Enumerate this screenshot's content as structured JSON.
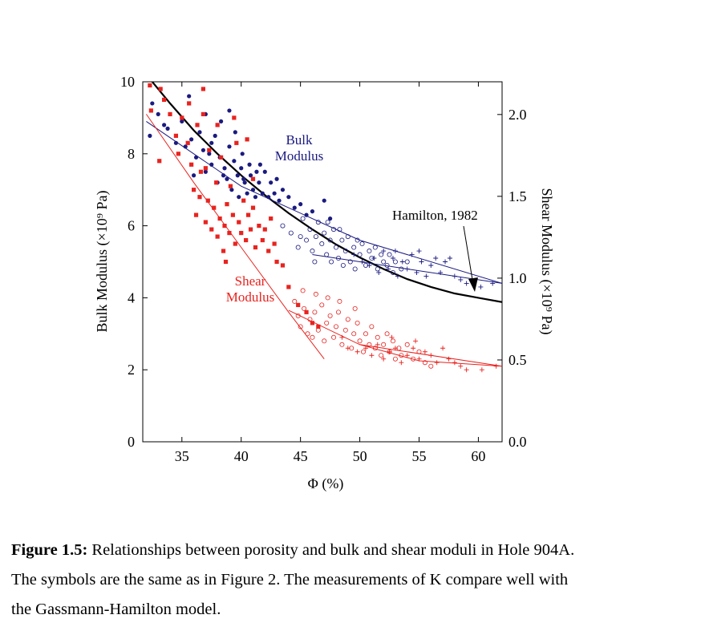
{
  "chart_data": {
    "type": "scatter",
    "xlabel": "Φ (%)",
    "ylabel_left": "Bulk Modulus (×10⁹ Pa)",
    "ylabel_right": "Shear Modulus (×10⁹ Pa)",
    "xlim": [
      31.7,
      62
    ],
    "ylim_left": [
      0,
      10
    ],
    "ylim_right": [
      0,
      2.2
    ],
    "x_ticks": [
      35,
      40,
      45,
      50,
      55,
      60
    ],
    "y_ticks_left": [
      0,
      2,
      4,
      6,
      8,
      10
    ],
    "y_ticks_right": [
      "0.0",
      "0.5",
      "1.0",
      "1.5",
      "2.0"
    ],
    "grid": false,
    "annotations": {
      "bulk_label": [
        "Bulk",
        "Modulus"
      ],
      "shear_label": [
        "Shear",
        "Modulus"
      ],
      "hamilton_label": "Hamilton, 1982"
    },
    "colors": {
      "bulk": "#1a1a80",
      "shear": "#e8231f",
      "hamilton": "#000000"
    },
    "curves": {
      "hamilton_1982": {
        "x": [
          32,
          34,
          36,
          38,
          40,
          42,
          44,
          46,
          48,
          50,
          52,
          54,
          56,
          58,
          60,
          62
        ],
        "y": [
          10.2,
          9.4,
          8.65,
          8.0,
          7.4,
          6.85,
          6.35,
          5.9,
          5.48,
          5.12,
          4.8,
          4.52,
          4.3,
          4.12,
          4.0,
          3.88
        ]
      },
      "bulk_fit": {
        "x": [
          32,
          40,
          50,
          62
        ],
        "y": [
          8.9,
          7.1,
          5.6,
          4.4
        ]
      },
      "bulk_fit_high": {
        "x": [
          46,
          62
        ],
        "y": [
          5.2,
          4.4
        ]
      },
      "shear_fit": {
        "x": [
          32,
          36,
          40,
          44,
          47
        ],
        "y": [
          9.1,
          7.2,
          5.4,
          3.6,
          2.3
        ]
      },
      "shear_fit_high": {
        "x": [
          44,
          50,
          55,
          62
        ],
        "y": [
          3.65,
          2.7,
          2.25,
          2.1
        ]
      },
      "shear_fit_tail": {
        "x": [
          50,
          62
        ],
        "y": [
          2.7,
          2.1
        ]
      }
    },
    "series": [
      {
        "marker": "filled-circle",
        "color": "#1a1a80",
        "points": [
          [
            32.3,
            8.5
          ],
          [
            32.5,
            9.4
          ],
          [
            33.0,
            9.1
          ],
          [
            33.5,
            8.8
          ],
          [
            33.8,
            8.7
          ],
          [
            34.5,
            8.3
          ],
          [
            35.0,
            8.9
          ],
          [
            35.3,
            8.2
          ],
          [
            35.8,
            8.4
          ],
          [
            35.6,
            9.6
          ],
          [
            36.0,
            7.4
          ],
          [
            36.2,
            7.9
          ],
          [
            36.5,
            8.6
          ],
          [
            36.8,
            8.1
          ],
          [
            37.0,
            7.5
          ],
          [
            37.3,
            8.0
          ],
          [
            37.5,
            7.7
          ],
          [
            37.8,
            8.5
          ],
          [
            38.0,
            7.2
          ],
          [
            38.2,
            7.9
          ],
          [
            38.3,
            8.9
          ],
          [
            38.6,
            7.6
          ],
          [
            38.8,
            7.3
          ],
          [
            39.0,
            8.2
          ],
          [
            39.0,
            9.2
          ],
          [
            39.2,
            7.0
          ],
          [
            39.4,
            7.8
          ],
          [
            39.5,
            8.6
          ],
          [
            39.7,
            7.4
          ],
          [
            39.8,
            6.8
          ],
          [
            40.0,
            7.6
          ],
          [
            40.1,
            8.0
          ],
          [
            40.3,
            7.2
          ],
          [
            40.5,
            6.9
          ],
          [
            40.7,
            7.7
          ],
          [
            40.8,
            7.4
          ],
          [
            41.0,
            7.0
          ],
          [
            41.2,
            6.8
          ],
          [
            41.3,
            7.5
          ],
          [
            41.5,
            7.2
          ],
          [
            41.8,
            6.9
          ],
          [
            42.0,
            7.5
          ],
          [
            42.3,
            6.8
          ],
          [
            42.5,
            7.2
          ],
          [
            42.8,
            6.9
          ],
          [
            43.0,
            7.3
          ],
          [
            43.2,
            6.7
          ],
          [
            43.5,
            7.0
          ],
          [
            44.0,
            6.8
          ],
          [
            44.5,
            6.5
          ],
          [
            45.0,
            6.6
          ],
          [
            45.5,
            6.3
          ],
          [
            46.0,
            6.4
          ],
          [
            47.0,
            6.7
          ],
          [
            47.5,
            6.2
          ],
          [
            37.0,
            9.1
          ],
          [
            37.5,
            8.3
          ],
          [
            38.5,
            7.4
          ],
          [
            40.2,
            7.3
          ],
          [
            41.6,
            7.7
          ]
        ]
      },
      {
        "marker": "open-circle",
        "color": "#1a1a80",
        "points": [
          [
            43.5,
            6.0
          ],
          [
            44.2,
            5.8
          ],
          [
            44.8,
            5.4
          ],
          [
            45.2,
            6.2
          ],
          [
            45.5,
            5.6
          ],
          [
            45.8,
            5.9
          ],
          [
            46.0,
            5.3
          ],
          [
            46.3,
            5.7
          ],
          [
            46.5,
            6.1
          ],
          [
            46.8,
            5.5
          ],
          [
            47.0,
            5.8
          ],
          [
            47.2,
            5.2
          ],
          [
            47.5,
            5.6
          ],
          [
            47.8,
            5.9
          ],
          [
            48.0,
            5.4
          ],
          [
            48.2,
            5.1
          ],
          [
            48.5,
            5.6
          ],
          [
            48.8,
            5.3
          ],
          [
            49.0,
            5.7
          ],
          [
            49.2,
            5.0
          ],
          [
            49.5,
            5.4
          ],
          [
            49.8,
            5.6
          ],
          [
            50.0,
            5.2
          ],
          [
            50.2,
            5.5
          ],
          [
            50.5,
            4.9
          ],
          [
            50.8,
            5.3
          ],
          [
            51.0,
            5.1
          ],
          [
            51.3,
            5.4
          ],
          [
            51.5,
            4.8
          ],
          [
            51.8,
            5.2
          ],
          [
            52.0,
            5.0
          ],
          [
            52.3,
            4.9
          ],
          [
            52.5,
            5.2
          ],
          [
            52.8,
            4.7
          ],
          [
            53.0,
            5.0
          ],
          [
            53.5,
            4.8
          ],
          [
            54.0,
            5.0
          ],
          [
            46.2,
            5.0
          ],
          [
            47.6,
            5.0
          ],
          [
            48.6,
            4.9
          ],
          [
            49.6,
            4.8
          ],
          [
            45.0,
            5.7
          ],
          [
            47.3,
            6.1
          ],
          [
            48.3,
            5.9
          ]
        ]
      },
      {
        "marker": "plus",
        "color": "#1a1a80",
        "points": [
          [
            49.5,
            5.2
          ],
          [
            50.2,
            5.0
          ],
          [
            50.8,
            4.9
          ],
          [
            51.2,
            5.1
          ],
          [
            51.6,
            4.7
          ],
          [
            52.0,
            5.3
          ],
          [
            52.4,
            4.8
          ],
          [
            52.8,
            5.1
          ],
          [
            53.2,
            4.6
          ],
          [
            53.6,
            5.0
          ],
          [
            54.0,
            4.8
          ],
          [
            54.4,
            5.2
          ],
          [
            54.8,
            4.7
          ],
          [
            55.2,
            5.0
          ],
          [
            55.6,
            4.6
          ],
          [
            56.0,
            4.9
          ],
          [
            56.4,
            5.1
          ],
          [
            56.8,
            4.7
          ],
          [
            57.2,
            5.0
          ],
          [
            57.6,
            5.1
          ],
          [
            58.0,
            4.6
          ],
          [
            58.5,
            4.5
          ],
          [
            59.0,
            4.4
          ],
          [
            60.2,
            4.3
          ],
          [
            61.2,
            4.4
          ],
          [
            53.0,
            5.3
          ],
          [
            55.0,
            5.3
          ]
        ]
      },
      {
        "marker": "filled-square",
        "color": "#e8231f",
        "points": [
          [
            32.3,
            9.9
          ],
          [
            32.4,
            9.2
          ],
          [
            33.2,
            9.8
          ],
          [
            33.5,
            9.5
          ],
          [
            33.1,
            7.8
          ],
          [
            34.0,
            9.1
          ],
          [
            34.5,
            8.5
          ],
          [
            35.0,
            9.0
          ],
          [
            35.5,
            8.3
          ],
          [
            35.8,
            7.7
          ],
          [
            35.6,
            9.4
          ],
          [
            36.0,
            7.0
          ],
          [
            36.2,
            6.3
          ],
          [
            36.3,
            8.8
          ],
          [
            36.5,
            6.8
          ],
          [
            36.6,
            7.5
          ],
          [
            36.8,
            9.8
          ],
          [
            37.0,
            6.1
          ],
          [
            37.2,
            6.7
          ],
          [
            37.3,
            8.1
          ],
          [
            37.5,
            5.9
          ],
          [
            37.7,
            6.5
          ],
          [
            37.9,
            7.2
          ],
          [
            38.0,
            5.7
          ],
          [
            38.2,
            6.2
          ],
          [
            38.3,
            7.9
          ],
          [
            38.5,
            5.3
          ],
          [
            38.6,
            6.0
          ],
          [
            38.8,
            6.6
          ],
          [
            39.0,
            5.8
          ],
          [
            39.1,
            7.1
          ],
          [
            39.3,
            6.3
          ],
          [
            39.5,
            5.5
          ],
          [
            39.6,
            8.3
          ],
          [
            39.8,
            6.1
          ],
          [
            40.0,
            5.8
          ],
          [
            40.2,
            6.7
          ],
          [
            40.4,
            5.6
          ],
          [
            40.6,
            6.3
          ],
          [
            40.8,
            5.9
          ],
          [
            41.0,
            6.5
          ],
          [
            41.2,
            5.4
          ],
          [
            41.5,
            6.0
          ],
          [
            41.8,
            5.6
          ],
          [
            42.0,
            5.9
          ],
          [
            42.3,
            5.3
          ],
          [
            42.5,
            6.2
          ],
          [
            42.8,
            5.5
          ],
          [
            43.0,
            5.0
          ],
          [
            43.5,
            4.9
          ],
          [
            44.0,
            4.3
          ],
          [
            44.8,
            3.8
          ],
          [
            45.5,
            3.6
          ],
          [
            46.0,
            3.3
          ],
          [
            46.5,
            3.2
          ],
          [
            36.8,
            9.1
          ],
          [
            38.0,
            8.8
          ],
          [
            39.4,
            9.0
          ],
          [
            40.5,
            8.4
          ],
          [
            41.0,
            7.3
          ],
          [
            34.7,
            8.0
          ],
          [
            37.0,
            7.6
          ],
          [
            38.7,
            5.0
          ]
        ]
      },
      {
        "marker": "open-circle",
        "color": "#e8231f",
        "points": [
          [
            44.5,
            3.9
          ],
          [
            44.8,
            3.5
          ],
          [
            45.0,
            3.2
          ],
          [
            45.3,
            3.7
          ],
          [
            45.6,
            3.0
          ],
          [
            45.8,
            3.4
          ],
          [
            46.0,
            2.9
          ],
          [
            46.2,
            3.6
          ],
          [
            46.5,
            3.1
          ],
          [
            46.8,
            3.8
          ],
          [
            47.0,
            2.8
          ],
          [
            47.2,
            3.3
          ],
          [
            47.5,
            3.5
          ],
          [
            47.8,
            2.9
          ],
          [
            48.0,
            3.2
          ],
          [
            48.2,
            3.6
          ],
          [
            48.5,
            2.7
          ],
          [
            48.8,
            3.1
          ],
          [
            49.0,
            3.4
          ],
          [
            49.3,
            2.6
          ],
          [
            49.5,
            3.0
          ],
          [
            49.8,
            3.3
          ],
          [
            50.0,
            2.8
          ],
          [
            50.3,
            2.5
          ],
          [
            50.5,
            3.0
          ],
          [
            50.8,
            2.7
          ],
          [
            51.0,
            3.2
          ],
          [
            51.3,
            2.6
          ],
          [
            51.5,
            2.9
          ],
          [
            51.8,
            2.4
          ],
          [
            52.0,
            2.7
          ],
          [
            52.3,
            3.0
          ],
          [
            52.5,
            2.5
          ],
          [
            52.8,
            2.8
          ],
          [
            53.0,
            2.3
          ],
          [
            53.3,
            2.6
          ],
          [
            53.5,
            2.4
          ],
          [
            54.0,
            2.7
          ],
          [
            54.5,
            2.3
          ],
          [
            55.0,
            2.5
          ],
          [
            55.5,
            2.2
          ],
          [
            56.0,
            2.1
          ],
          [
            46.3,
            4.1
          ],
          [
            47.3,
            4.0
          ],
          [
            48.3,
            3.9
          ],
          [
            49.6,
            3.7
          ],
          [
            45.2,
            4.2
          ]
        ]
      },
      {
        "marker": "plus",
        "color": "#e8231f",
        "points": [
          [
            48.5,
            2.9
          ],
          [
            49.0,
            2.6
          ],
          [
            49.8,
            2.5
          ],
          [
            50.5,
            2.6
          ],
          [
            51.0,
            2.4
          ],
          [
            51.5,
            2.7
          ],
          [
            52.0,
            2.3
          ],
          [
            52.5,
            2.5
          ],
          [
            53.0,
            2.6
          ],
          [
            53.5,
            2.2
          ],
          [
            54.0,
            2.4
          ],
          [
            54.5,
            2.6
          ],
          [
            55.0,
            2.3
          ],
          [
            55.5,
            2.5
          ],
          [
            56.0,
            2.4
          ],
          [
            56.5,
            2.2
          ],
          [
            57.0,
            2.6
          ],
          [
            57.5,
            2.3
          ],
          [
            58.0,
            2.2
          ],
          [
            58.5,
            2.1
          ],
          [
            59.0,
            2.0
          ],
          [
            60.3,
            2.0
          ],
          [
            61.5,
            2.1
          ],
          [
            52.7,
            2.9
          ],
          [
            54.7,
            2.8
          ]
        ]
      }
    ]
  },
  "caption": {
    "label": "Figure 1.5:",
    "line1": " Relationships between porosity and bulk and shear moduli in Hole 904A.",
    "line2": "The symbols are the same as in Figure 2. The measurements of K  compare well with",
    "line3": "the Gassmann-Hamilton model."
  }
}
